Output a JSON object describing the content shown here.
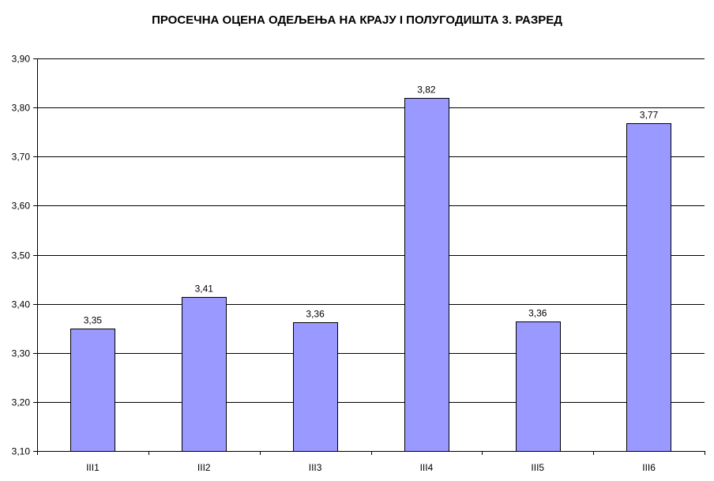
{
  "chart_data": {
    "type": "bar",
    "title": "ПРОСЕЧНА ОЦЕНА ОДЕЉЕЊА НА КРАЈУ  I ПОЛУГОДИШТА 3. РАЗРЕД",
    "xlabel": "",
    "ylabel": "",
    "categories": [
      "III1",
      "III2",
      "III3",
      "III4",
      "III5",
      "III6"
    ],
    "values": [
      3.35,
      3.414,
      3.362,
      3.82,
      3.364,
      3.768
    ],
    "data_labels": [
      "3,35",
      "3,41",
      "3,36",
      "3,82",
      "3,36",
      "3,77"
    ],
    "ylim": [
      3.1,
      3.9
    ],
    "yticks": [
      3.1,
      3.2,
      3.3,
      3.4,
      3.5,
      3.6,
      3.7,
      3.8,
      3.9
    ],
    "ytick_labels": [
      "3,10",
      "3,20",
      "3,30",
      "3,40",
      "3,50",
      "3,60",
      "3,70",
      "3,80",
      "3,90"
    ],
    "grid": true,
    "legend": "none",
    "bar_color": "#9999ff",
    "bar_stroke": "#000000",
    "grid_color": "#000000"
  }
}
